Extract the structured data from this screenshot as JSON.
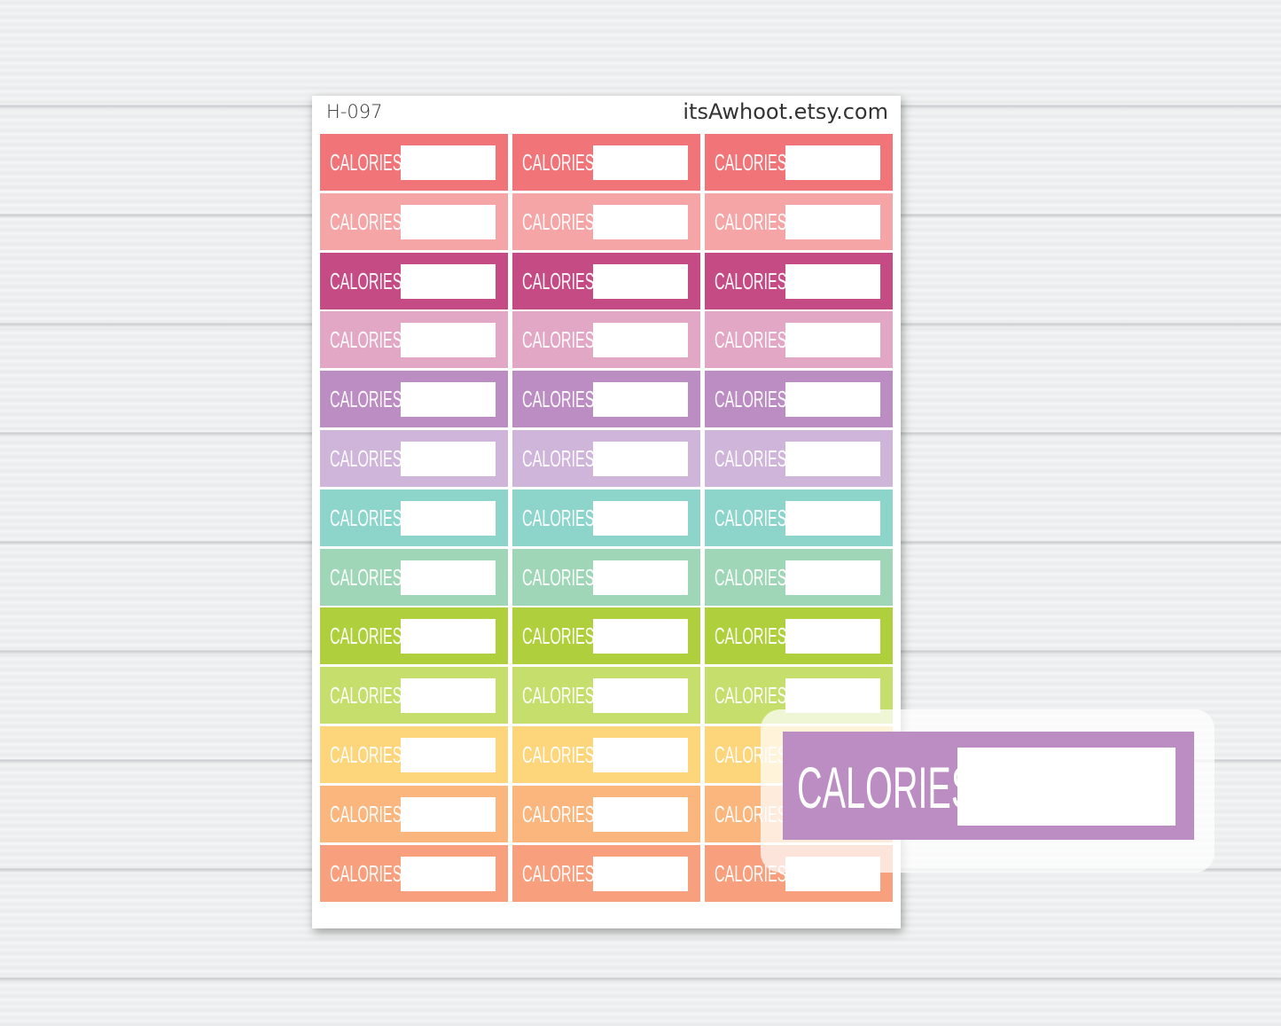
{
  "sheet": {
    "code": "H-097",
    "site": "itsAwhoot.etsy.com",
    "sticker_label": "CALORIES:",
    "columns": 3,
    "row_colors": [
      "#f07478",
      "#f6a5a6",
      "#c54b84",
      "#e2a7c4",
      "#bb8dc2",
      "#cfb5da",
      "#8dd4cb",
      "#a0d6b8",
      "#afd03c",
      "#c5de6c",
      "#fdd57a",
      "#fbb67e",
      "#f89f7d"
    ]
  },
  "callout": {
    "label": "CALORIES:",
    "color": "#bb8dc2"
  }
}
